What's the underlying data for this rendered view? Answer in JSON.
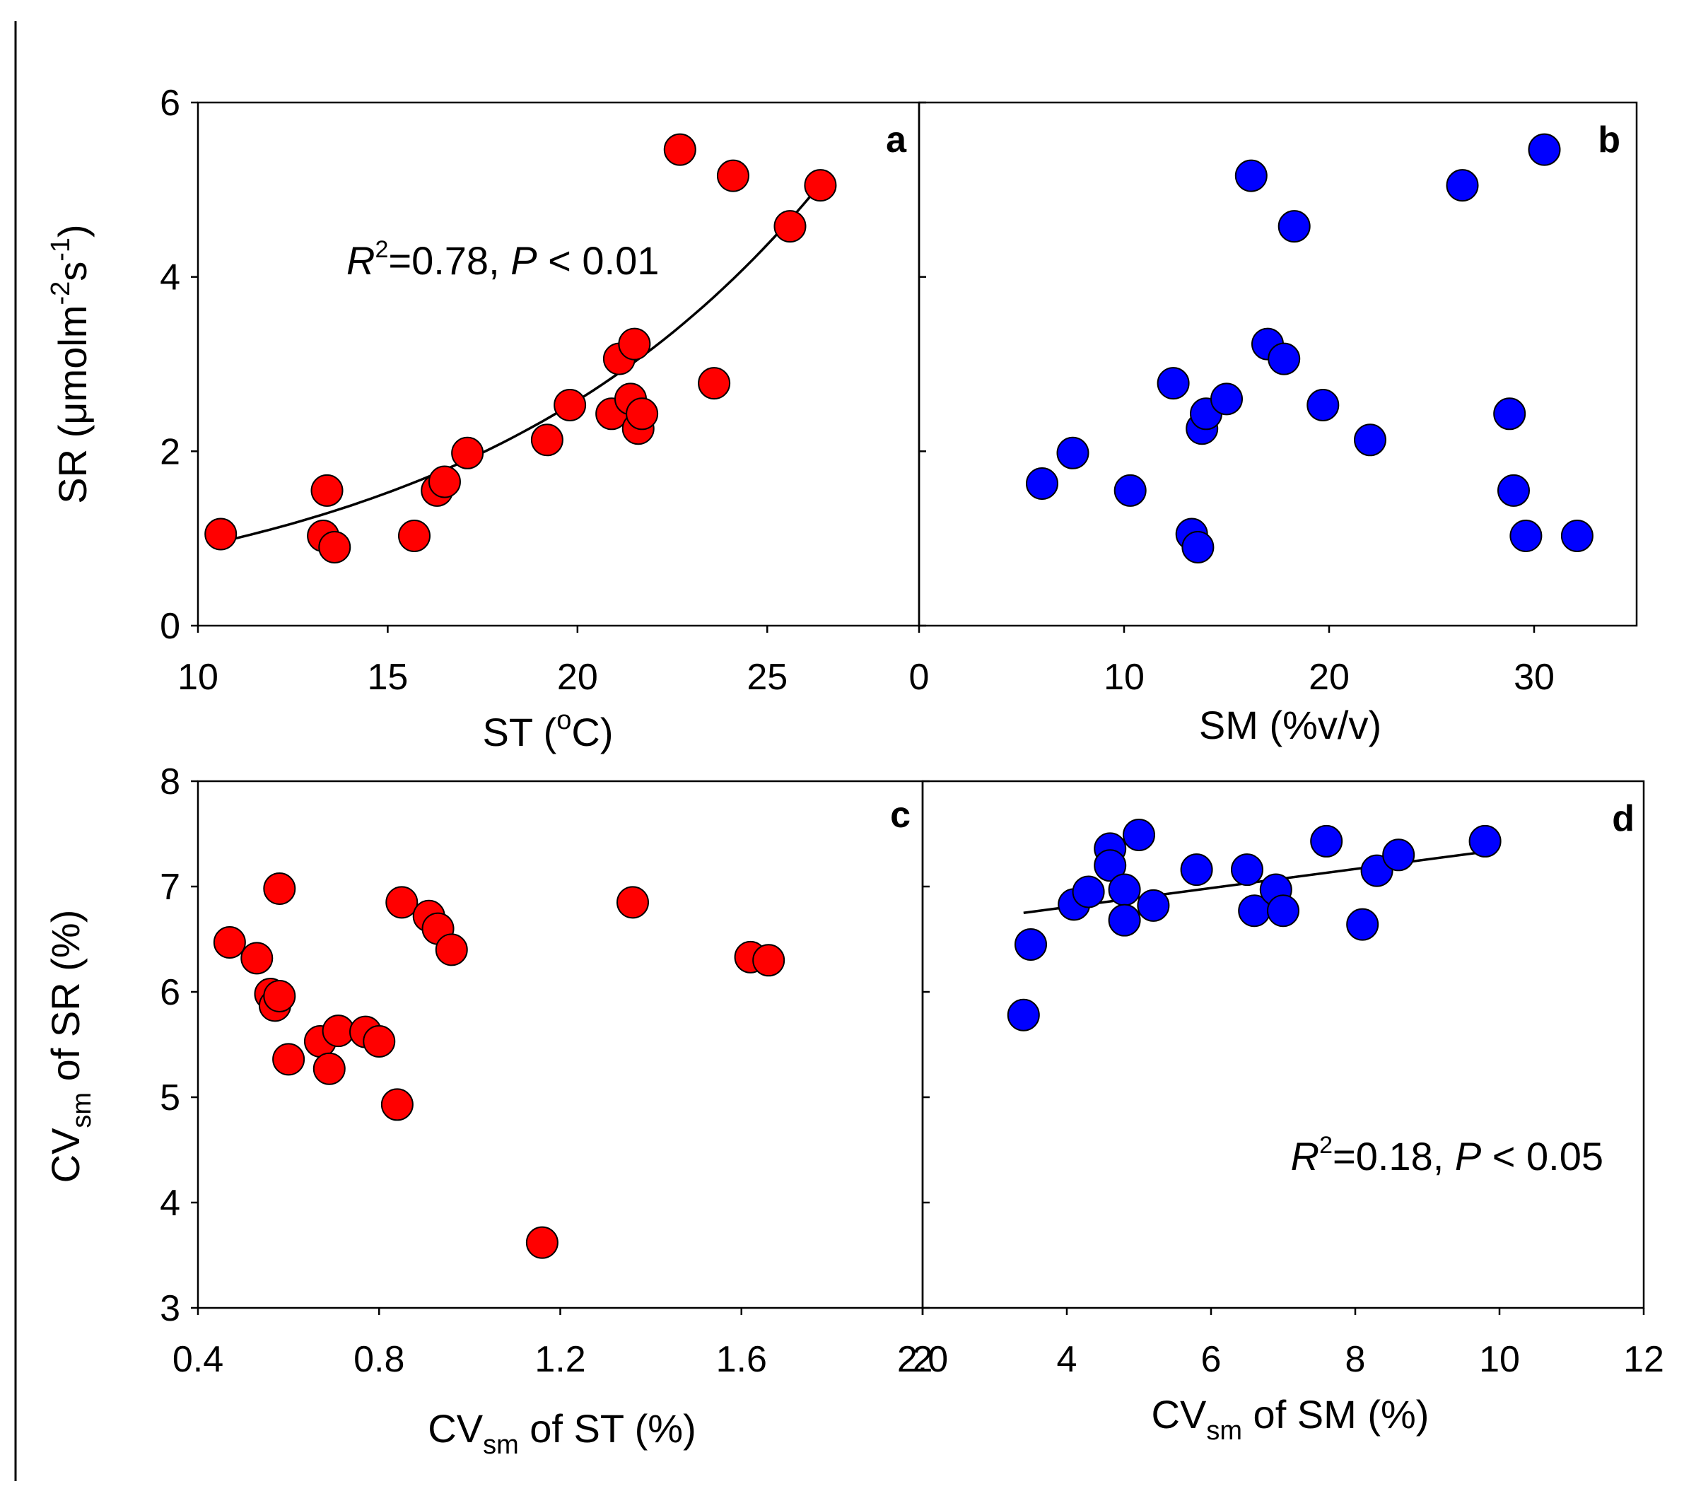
{
  "colors": {
    "red_points": "#ff0000",
    "blue_points": "#0000ff",
    "line": "#000000"
  },
  "chart_data": [
    {
      "panel": "a",
      "type": "scatter",
      "xlabel": "ST (°C)",
      "ylabel": "SR (μmolm-2s-1)",
      "xlim": [
        10,
        29
      ],
      "ylim": [
        0,
        6
      ],
      "xticks": [
        "10",
        "15",
        "20",
        "25"
      ],
      "yticks": [
        "0",
        "2",
        "4",
        "6"
      ],
      "point_color": "red",
      "annotation": {
        "r2_value": "=0.78, ",
        "p_text": "P",
        "p_rest": " < 0.01"
      },
      "fit": {
        "type": "exponential",
        "a": 0.315,
        "b": 0.1052,
        "x_range": [
          10.6,
          26.5
        ]
      },
      "series": [
        {
          "name": "SR vs ST",
          "points": [
            [
              10.6,
              1.05
            ],
            [
              13.3,
              1.03
            ],
            [
              13.6,
              0.9
            ],
            [
              13.4,
              1.55
            ],
            [
              15.7,
              1.03
            ],
            [
              16.3,
              1.55
            ],
            [
              16.5,
              1.65
            ],
            [
              17.1,
              1.98
            ],
            [
              19.2,
              2.13
            ],
            [
              19.8,
              2.53
            ],
            [
              20.9,
              2.43
            ],
            [
              21.1,
              3.06
            ],
            [
              21.4,
              2.6
            ],
            [
              21.5,
              3.23
            ],
            [
              21.6,
              2.26
            ],
            [
              21.7,
              2.43
            ],
            [
              22.7,
              5.46
            ],
            [
              23.6,
              2.78
            ],
            [
              24.1,
              5.16
            ],
            [
              25.6,
              4.58
            ],
            [
              26.4,
              5.05
            ]
          ]
        }
      ]
    },
    {
      "panel": "b",
      "type": "scatter",
      "xlabel": "SM (%v/v)",
      "ylabel": "",
      "xlim": [
        0,
        35
      ],
      "ylim": [
        0,
        6
      ],
      "xticks": [
        "0",
        "10",
        "20",
        "30"
      ],
      "yticks": [
        "0",
        "2",
        "4",
        "6"
      ],
      "point_color": "blue",
      "series": [
        {
          "name": "SR vs SM",
          "points": [
            [
              6.0,
              1.63
            ],
            [
              7.5,
              1.98
            ],
            [
              10.3,
              1.55
            ],
            [
              12.4,
              2.78
            ],
            [
              13.3,
              1.05
            ],
            [
              13.6,
              0.9
            ],
            [
              13.8,
              2.26
            ],
            [
              14.0,
              2.43
            ],
            [
              15.0,
              2.6
            ],
            [
              16.2,
              5.16
            ],
            [
              17.0,
              3.23
            ],
            [
              17.8,
              3.06
            ],
            [
              18.3,
              4.58
            ],
            [
              19.7,
              2.53
            ],
            [
              22.0,
              2.13
            ],
            [
              26.5,
              5.05
            ],
            [
              28.8,
              2.43
            ],
            [
              29.0,
              1.55
            ],
            [
              29.6,
              1.03
            ],
            [
              30.5,
              5.46
            ],
            [
              32.1,
              1.03
            ]
          ]
        }
      ]
    },
    {
      "panel": "c",
      "type": "scatter",
      "xlabel_main": "CV",
      "xlabel_sub": "sm",
      "xlabel_rest": " of ST (%)",
      "ylabel_main": "CV",
      "ylabel_sub": "sm",
      "ylabel_rest": " of SR (%)",
      "xlim": [
        0.4,
        2.0
      ],
      "ylim": [
        3,
        8
      ],
      "xticks": [
        "0.4",
        "0.8",
        "1.2",
        "1.6",
        "2.0"
      ],
      "yticks": [
        "3",
        "4",
        "5",
        "6",
        "7",
        "8"
      ],
      "point_color": "red",
      "series": [
        {
          "name": "CVsm SR vs CVsm ST",
          "points": [
            [
              0.47,
              6.47
            ],
            [
              0.53,
              6.32
            ],
            [
              0.56,
              5.98
            ],
            [
              0.57,
              5.87
            ],
            [
              0.58,
              5.96
            ],
            [
              0.58,
              6.98
            ],
            [
              0.6,
              5.36
            ],
            [
              0.67,
              5.53
            ],
            [
              0.69,
              5.27
            ],
            [
              0.71,
              5.63
            ],
            [
              0.77,
              5.62
            ],
            [
              0.8,
              5.53
            ],
            [
              0.84,
              4.93
            ],
            [
              0.85,
              6.85
            ],
            [
              0.91,
              6.72
            ],
            [
              0.93,
              6.6
            ],
            [
              0.96,
              6.4
            ],
            [
              1.16,
              3.62
            ],
            [
              1.36,
              6.85
            ],
            [
              1.62,
              6.33
            ],
            [
              1.66,
              6.3
            ]
          ]
        }
      ]
    },
    {
      "panel": "d",
      "type": "scatter",
      "xlabel_main": "CV",
      "xlabel_sub": "sm",
      "xlabel_rest": " of SM (%)",
      "ylabel": "",
      "xlim": [
        2,
        12
      ],
      "ylim": [
        3,
        8
      ],
      "xticks": [
        "2",
        "4",
        "6",
        "8",
        "10",
        "12"
      ],
      "yticks": [
        "3",
        "4",
        "5",
        "6",
        "7",
        "8"
      ],
      "point_color": "blue",
      "annotation": {
        "r2_value": "=0.18, ",
        "p_text": "P",
        "p_rest": " < 0.05"
      },
      "fit": {
        "type": "linear",
        "x_range": [
          3.4,
          9.8
        ],
        "y_range": [
          6.75,
          7.33
        ]
      },
      "series": [
        {
          "name": "CVsm SR vs CVsm SM",
          "points": [
            [
              3.4,
              5.78
            ],
            [
              3.5,
              6.45
            ],
            [
              4.1,
              6.83
            ],
            [
              4.3,
              6.95
            ],
            [
              4.6,
              7.36
            ],
            [
              4.6,
              7.2
            ],
            [
              4.8,
              6.97
            ],
            [
              4.8,
              6.68
            ],
            [
              5.0,
              7.49
            ],
            [
              5.2,
              6.82
            ],
            [
              5.8,
              7.16
            ],
            [
              6.5,
              7.16
            ],
            [
              6.6,
              6.77
            ],
            [
              6.9,
              6.97
            ],
            [
              7.0,
              6.77
            ],
            [
              7.6,
              7.43
            ],
            [
              8.1,
              6.64
            ],
            [
              8.3,
              7.15
            ],
            [
              8.6,
              7.3
            ],
            [
              9.8,
              7.43
            ]
          ]
        }
      ]
    }
  ],
  "labels": {
    "a": "a",
    "b": "b",
    "c": "c",
    "d": "d",
    "ylabel_a_main": "SR (μmolm",
    "ylabel_a_sup1": "-2",
    "ylabel_a_mid": "s",
    "ylabel_a_sup2": "-1",
    "ylabel_a_end": ")",
    "xlabel_a_main": "ST (",
    "xlabel_a_sup": "o",
    "xlabel_a_end": "C)",
    "r_letter": "R",
    "r_sup": "2"
  }
}
